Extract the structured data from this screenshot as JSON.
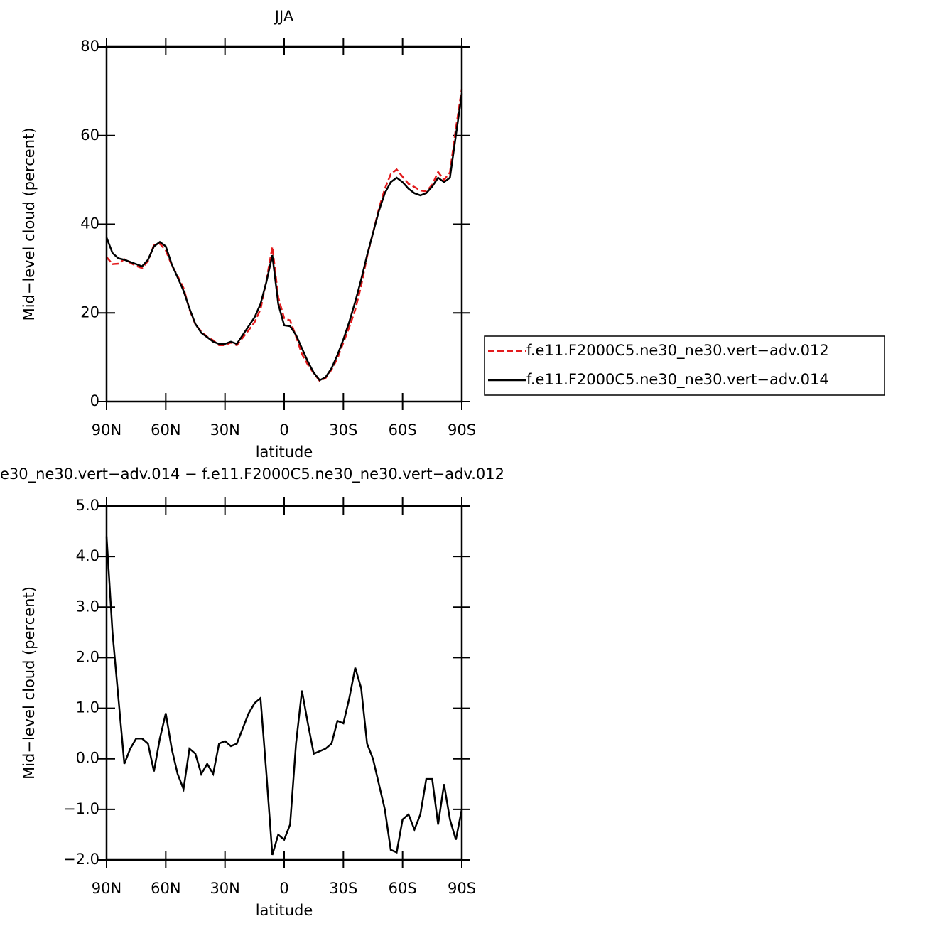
{
  "chart_data": [
    {
      "type": "line",
      "title": "JJA",
      "xlabel": "latitude",
      "ylabel": "Mid−level cloud (percent)",
      "x": [
        90,
        87,
        84,
        81,
        78,
        75,
        72,
        69,
        66,
        63,
        60,
        57,
        54,
        51,
        48,
        45,
        42,
        39,
        36,
        33,
        30,
        27,
        24,
        21,
        18,
        15,
        12,
        9,
        6,
        3,
        0,
        -3,
        -6,
        -9,
        -12,
        -15,
        -18,
        -21,
        -24,
        -27,
        -30,
        -33,
        -36,
        -39,
        -42,
        -45,
        -48,
        -51,
        -54,
        -57,
        -60,
        -63,
        -66,
        -69,
        -72,
        -75,
        -78,
        -81,
        -84,
        -87,
        -90
      ],
      "series": [
        {
          "name": "f.e11.F2000C5.ne30_ne30.vert−adv.012",
          "color": "#e31a1c",
          "line_style": "dashed",
          "values": [
            32.6,
            31.0,
            31.1,
            32.1,
            31.3,
            30.6,
            30.1,
            31.7,
            35.3,
            35.6,
            34.1,
            30.8,
            28.3,
            25.6,
            20.8,
            17.4,
            15.8,
            14.6,
            13.8,
            12.7,
            12.7,
            13.3,
            12.7,
            14.4,
            16.1,
            17.9,
            20.8,
            27.3,
            34.9,
            23.5,
            18.8,
            18.3,
            14.7,
            10.7,
            8.3,
            6.4,
            4.65,
            5.3,
            7.2,
            9.75,
            13.3,
            16.8,
            20.7,
            26.1,
            32.7,
            38,
            43.5,
            48,
            51.3,
            52.35,
            50.7,
            49.1,
            48.4,
            47.6,
            47.4,
            48.9,
            51.8,
            50,
            51.7,
            61.6,
            70.5
          ]
        },
        {
          "name": "f.e11.F2000C5.ne30_ne30.vert−adv.014",
          "color": "#000000",
          "line_style": "solid",
          "values": [
            37,
            33.5,
            32.3,
            32,
            31.5,
            31,
            30.5,
            32,
            35,
            36,
            35,
            31,
            28,
            25,
            21,
            17.5,
            15.5,
            14.5,
            13.5,
            13,
            13,
            13.5,
            13,
            15,
            17,
            19,
            22,
            27,
            33,
            22,
            17.2,
            17,
            15,
            12,
            9,
            6.5,
            4.8,
            5.5,
            7.5,
            10.5,
            14,
            18,
            22.5,
            27.5,
            33,
            38,
            43,
            47,
            49.5,
            50.5,
            49.5,
            48,
            47,
            46.5,
            47,
            48.5,
            50.5,
            49.5,
            50.5,
            60,
            69.5
          ]
        }
      ],
      "xlim": [
        90,
        -90
      ],
      "xticks": [
        {
          "value": 90,
          "label": "90N"
        },
        {
          "value": 60,
          "label": "60N"
        },
        {
          "value": 30,
          "label": "30N"
        },
        0,
        {
          "value": -30,
          "label": "30S"
        },
        {
          "value": -60,
          "label": "60S"
        },
        {
          "value": -90,
          "label": "90S"
        }
      ],
      "ylim": [
        0,
        80
      ],
      "yticks": [
        0,
        20,
        40,
        60,
        80
      ],
      "legend": "right"
    },
    {
      "type": "line",
      "title": "e30_ne30.vert−adv.014 − f.e11.F2000C5.ne30_ne30.vert−adv.012",
      "xlabel": "latitude",
      "ylabel": "Mid−level cloud (percent)",
      "x": [
        90,
        87,
        84,
        81,
        78,
        75,
        72,
        69,
        66,
        63,
        60,
        57,
        54,
        51,
        48,
        45,
        42,
        39,
        36,
        33,
        30,
        27,
        24,
        21,
        18,
        15,
        12,
        9,
        6,
        3,
        0,
        -3,
        -6,
        -9,
        -12,
        -15,
        -18,
        -21,
        -24,
        -27,
        -30,
        -33,
        -36,
        -39,
        -42,
        -45,
        -48,
        -51,
        -54,
        -57,
        -60,
        -63,
        -66,
        -69,
        -72,
        -75,
        -78,
        -81,
        -84,
        -87,
        -90
      ],
      "values": [
        4.4,
        2.5,
        1.2,
        -0.1,
        0.2,
        0.4,
        0.4,
        0.3,
        -0.25,
        0.4,
        0.9,
        0.2,
        -0.3,
        -0.6,
        0.2,
        0.1,
        -0.3,
        -0.1,
        -0.3,
        0.3,
        0.35,
        0.25,
        0.3,
        0.6,
        0.9,
        1.1,
        1.2,
        -0.3,
        -1.9,
        -1.5,
        -1.6,
        -1.3,
        0.3,
        1.35,
        0.7,
        0.1,
        0.15,
        0.2,
        0.3,
        0.75,
        0.7,
        1.2,
        1.8,
        1.4,
        0.3,
        0.0,
        -0.5,
        -1.0,
        -1.8,
        -1.85,
        -1.2,
        -1.1,
        -1.4,
        -1.1,
        -0.4,
        -0.4,
        -1.3,
        -0.5,
        -1.2,
        -1.6,
        -1.0
      ],
      "color": "#000000",
      "xlim": [
        90,
        -90
      ],
      "xticks": [
        {
          "value": 90,
          "label": "90N"
        },
        {
          "value": 60,
          "label": "60N"
        },
        {
          "value": 30,
          "label": "30N"
        },
        0,
        {
          "value": -30,
          "label": "30S"
        },
        {
          "value": -60,
          "label": "60S"
        },
        {
          "value": -90,
          "label": "90S"
        }
      ],
      "ylim": [
        -2,
        5
      ],
      "yticks": [
        {
          "value": -2,
          "label": "−2.0"
        },
        {
          "value": -1,
          "label": "−1.0"
        },
        {
          "value": 0,
          "label": "0.0"
        },
        {
          "value": 1,
          "label": "1.0"
        },
        {
          "value": 2,
          "label": "2.0"
        },
        {
          "value": 3,
          "label": "3.0"
        },
        {
          "value": 4,
          "label": "4.0"
        },
        {
          "value": 5,
          "label": "5.0"
        }
      ]
    }
  ]
}
